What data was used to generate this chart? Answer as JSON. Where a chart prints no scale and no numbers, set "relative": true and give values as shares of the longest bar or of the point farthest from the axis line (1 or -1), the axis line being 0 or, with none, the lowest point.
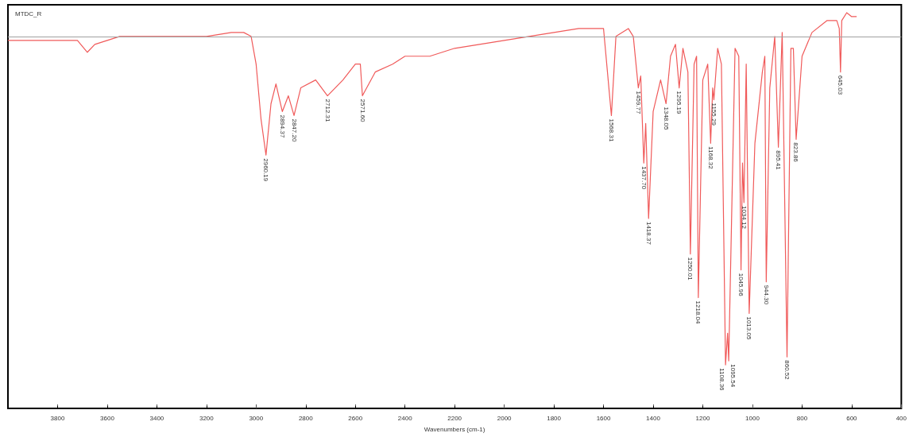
{
  "chart_data": {
    "type": "line",
    "relative": true,
    "title": "MTDC_R",
    "xlabel": "Wavenumbers (cm-1)",
    "xlim": [
      4000,
      400
    ],
    "xticks": [
      3800,
      3600,
      3400,
      3200,
      3000,
      2800,
      2600,
      2400,
      2200,
      2000,
      1800,
      1600,
      1400,
      1200,
      1000,
      800,
      600,
      400
    ],
    "marker": "none",
    "line_style": "solid",
    "tick_labels": "x",
    "ref_lines": [
      {
        "axis": "y",
        "value": 0.94,
        "color": "#a0a0a0"
      }
    ],
    "series": [
      {
        "color": "#f05a5a",
        "x": [
          4000,
          3800,
          3720,
          3680,
          3650,
          3550,
          3400,
          3200,
          3100,
          3050,
          3020,
          3000,
          2980,
          2960.19,
          2940,
          2920,
          2894.37,
          2870,
          2847.2,
          2820,
          2760,
          2712.31,
          2650,
          2600,
          2580,
          2571.6,
          2520,
          2450,
          2400,
          2300,
          2200,
          2100,
          2000,
          1900,
          1800,
          1700,
          1620,
          1600,
          1568.31,
          1550,
          1500,
          1480,
          1459.77,
          1450,
          1437.7,
          1430,
          1418.37,
          1400,
          1370,
          1348.05,
          1330,
          1310,
          1295.19,
          1280,
          1260,
          1250.01,
          1235,
          1225,
          1218.04,
          1200,
          1180,
          1168.32,
          1160,
          1155.29,
          1140,
          1125,
          1108.36,
          1100,
          1095.54,
          1070,
          1055,
          1045.96,
          1040,
          1034.12,
          1025,
          1013.05,
          990,
          960,
          950,
          944.3,
          930,
          910,
          895.41,
          880,
          860.52,
          845,
          835,
          823.86,
          800,
          760,
          700,
          660,
          650,
          645.03,
          640,
          620,
          600,
          580
        ],
        "values": [
          0.93,
          0.93,
          0.93,
          0.9,
          0.92,
          0.94,
          0.94,
          0.94,
          0.95,
          0.95,
          0.94,
          0.87,
          0.73,
          0.64,
          0.77,
          0.82,
          0.75,
          0.79,
          0.74,
          0.81,
          0.83,
          0.79,
          0.83,
          0.87,
          0.87,
          0.79,
          0.85,
          0.87,
          0.89,
          0.89,
          0.91,
          0.92,
          0.93,
          0.94,
          0.95,
          0.96,
          0.96,
          0.96,
          0.74,
          0.94,
          0.96,
          0.94,
          0.81,
          0.84,
          0.62,
          0.72,
          0.48,
          0.75,
          0.83,
          0.77,
          0.89,
          0.92,
          0.81,
          0.91,
          0.85,
          0.39,
          0.87,
          0.89,
          0.28,
          0.83,
          0.87,
          0.67,
          0.81,
          0.78,
          0.91,
          0.87,
          0.11,
          0.19,
          0.12,
          0.91,
          0.89,
          0.35,
          0.62,
          0.52,
          0.87,
          0.24,
          0.67,
          0.85,
          0.89,
          0.32,
          0.81,
          0.94,
          0.66,
          0.95,
          0.13,
          0.91,
          0.91,
          0.68,
          0.89,
          0.95,
          0.98,
          0.98,
          0.96,
          0.85,
          0.98,
          1.0,
          0.99,
          0.99
        ]
      }
    ],
    "annotations": [
      {
        "text": "2960.19",
        "x": 2960.19,
        "y": 0.64
      },
      {
        "text": "2894.37",
        "x": 2894.37,
        "y": 0.75
      },
      {
        "text": "2847.20",
        "x": 2847.2,
        "y": 0.74
      },
      {
        "text": "2712.31",
        "x": 2712.31,
        "y": 0.79
      },
      {
        "text": "2571.60",
        "x": 2571.6,
        "y": 0.79
      },
      {
        "text": "1568.31",
        "x": 1568.31,
        "y": 0.74
      },
      {
        "text": "1459.77",
        "x": 1459.77,
        "y": 0.81
      },
      {
        "text": "1437.70",
        "x": 1437.7,
        "y": 0.62
      },
      {
        "text": "1418.37",
        "x": 1418.37,
        "y": 0.48
      },
      {
        "text": "1348.05",
        "x": 1348.05,
        "y": 0.77
      },
      {
        "text": "1295.19",
        "x": 1295.19,
        "y": 0.81
      },
      {
        "text": "1250.01",
        "x": 1250.01,
        "y": 0.39
      },
      {
        "text": "1218.04",
        "x": 1218.04,
        "y": 0.28
      },
      {
        "text": "1168.32",
        "x": 1168.32,
        "y": 0.67
      },
      {
        "text": "1155.29",
        "x": 1155.29,
        "y": 0.78
      },
      {
        "text": "1108.36",
        "x": 1108.36,
        "y": 0.11
      },
      {
        "text": "1095.54",
        "x": 1095.54,
        "y": 0.12
      },
      {
        "text": "1045.96",
        "x": 1045.96,
        "y": 0.35
      },
      {
        "text": "1034.12",
        "x": 1034.12,
        "y": 0.52
      },
      {
        "text": "1013.05",
        "x": 1013.05,
        "y": 0.24
      },
      {
        "text": "944.30",
        "x": 944.3,
        "y": 0.32
      },
      {
        "text": "895.41",
        "x": 895.41,
        "y": 0.66
      },
      {
        "text": "860.52",
        "x": 860.52,
        "y": 0.13
      },
      {
        "text": "823.86",
        "x": 823.86,
        "y": 0.68
      },
      {
        "text": "645.03",
        "x": 645.03,
        "y": 0.85
      }
    ]
  }
}
